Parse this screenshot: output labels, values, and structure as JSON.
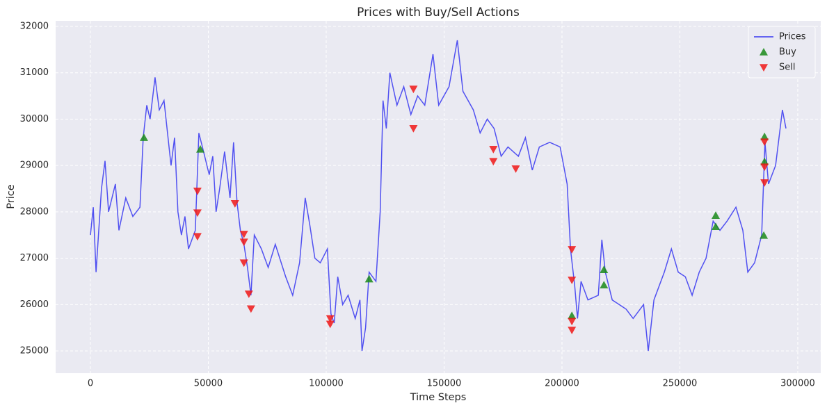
{
  "chart_data": {
    "type": "line",
    "title": "Prices with Buy/Sell Actions",
    "x_label": "Time Steps",
    "y_label": "Price",
    "xlim": [
      -14750,
      309750
    ],
    "ylim": [
      24520,
      32120
    ],
    "xticks": [
      0,
      50000,
      100000,
      150000,
      200000,
      250000,
      300000
    ],
    "yticks": [
      25000,
      26000,
      27000,
      28000,
      29000,
      30000,
      31000,
      32000
    ],
    "grid": true,
    "legend": "upper right",
    "series": [
      {
        "name": "Prices",
        "kind": "line",
        "color": "#2a2af0",
        "x": [
          0,
          1200,
          2400,
          4700,
          6200,
          7700,
          10600,
          12100,
          15000,
          18000,
          21000,
          22400,
          23900,
          25300,
          27400,
          29200,
          31200,
          34200,
          35700,
          37100,
          38600,
          40100,
          41600,
          44500,
          46000,
          47500,
          50400,
          51900,
          53300,
          54800,
          56900,
          59200,
          60700,
          62200,
          63600,
          65100,
          66600,
          68100,
          69500,
          72500,
          75400,
          78400,
          82800,
          85800,
          88700,
          91100,
          93100,
          95200,
          97500,
          100500,
          102000,
          103400,
          104900,
          107000,
          109300,
          112300,
          114300,
          115200,
          116700,
          118200,
          121100,
          122900,
          124100,
          125500,
          127000,
          130000,
          132900,
          135900,
          138800,
          141800,
          145300,
          147700,
          152100,
          155600,
          158000,
          162400,
          165300,
          168300,
          171200,
          174200,
          177100,
          181500,
          184500,
          187400,
          190400,
          194800,
          199200,
          202200,
          203600,
          205400,
          206600,
          208100,
          211000,
          215400,
          216900,
          218400,
          221300,
          227200,
          230200,
          234600,
          236600,
          239000,
          243400,
          246400,
          249300,
          252300,
          255200,
          258200,
          261100,
          264100,
          267000,
          270000,
          273800,
          276700,
          278800,
          281700,
          284700,
          286100,
          287600,
          290600,
          293500,
          295000
        ],
        "values": [
          27500,
          28100,
          26700,
          28500,
          29100,
          28000,
          28600,
          27600,
          28300,
          27900,
          28100,
          29600,
          30300,
          30000,
          30900,
          30200,
          30400,
          29000,
          29600,
          28000,
          27500,
          27900,
          27200,
          27600,
          29700,
          29400,
          28800,
          29200,
          28000,
          28500,
          29300,
          28300,
          29500,
          28200,
          27600,
          27300,
          26800,
          26200,
          27500,
          27200,
          26800,
          27300,
          26600,
          26200,
          26900,
          28300,
          27700,
          27000,
          26900,
          27200,
          25800,
          25600,
          26600,
          26000,
          26200,
          25700,
          26100,
          25000,
          25500,
          26700,
          26500,
          28000,
          30400,
          29800,
          31000,
          30300,
          30700,
          30100,
          30500,
          30300,
          31400,
          30300,
          30700,
          31700,
          30600,
          30200,
          29700,
          30000,
          29800,
          29200,
          29400,
          29200,
          29600,
          28900,
          29400,
          29500,
          29400,
          28600,
          27200,
          26400,
          25700,
          26500,
          26100,
          26200,
          27400,
          26700,
          26100,
          25900,
          25700,
          26000,
          25000,
          26100,
          26700,
          27200,
          26700,
          26600,
          26200,
          26700,
          27000,
          27800,
          27600,
          27800,
          28100,
          27600,
          26700,
          26900,
          27500,
          29500,
          28600,
          29000,
          30200,
          29800
        ]
      },
      {
        "name": "Buy",
        "kind": "scatter",
        "marker": "up",
        "color": "#1a8a1a",
        "x": [
          22700,
          46600,
          118200,
          204200,
          217800,
          217800,
          265200,
          265200,
          285600,
          285900,
          285900
        ],
        "values": [
          29600,
          29350,
          26550,
          25760,
          26750,
          26420,
          27920,
          27680,
          27490,
          29080,
          29620
        ]
      },
      {
        "name": "Sell",
        "kind": "scatter",
        "marker": "down",
        "color": "#f01818",
        "x": [
          45400,
          45400,
          45400,
          61300,
          65100,
          65100,
          65100,
          67200,
          68100,
          101700,
          101700,
          137000,
          137000,
          170900,
          170900,
          180400,
          204200,
          204200,
          204200,
          204200,
          285900,
          285900,
          285900
        ],
        "values": [
          28450,
          27980,
          27470,
          28180,
          27520,
          27350,
          26900,
          26230,
          25910,
          25700,
          25580,
          30650,
          29800,
          29350,
          29090,
          28930,
          27190,
          26530,
          25640,
          25450,
          29510,
          28970,
          28630
        ]
      }
    ]
  }
}
